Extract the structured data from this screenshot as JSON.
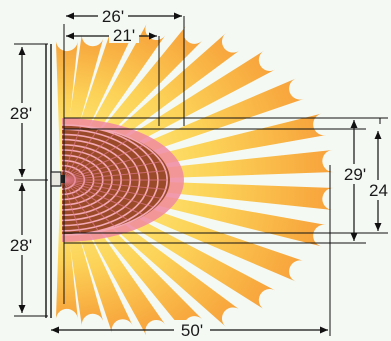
{
  "dimensions": {
    "top_outer": "26'",
    "top_inner": "21'",
    "left_upper": "28'",
    "left_lower": "28'",
    "right_inner": "29'",
    "right_outer": "24",
    "bottom": "50'"
  },
  "colors": {
    "background": "#f4f9f4",
    "fan_light": "#fff27a",
    "fan_dark": "#f7a13a",
    "core_pink": "#f08aa0",
    "core_brown": "#9a4a28",
    "wall": "#333333"
  },
  "icons": {
    "sensor": "motion-sensor-icon"
  }
}
